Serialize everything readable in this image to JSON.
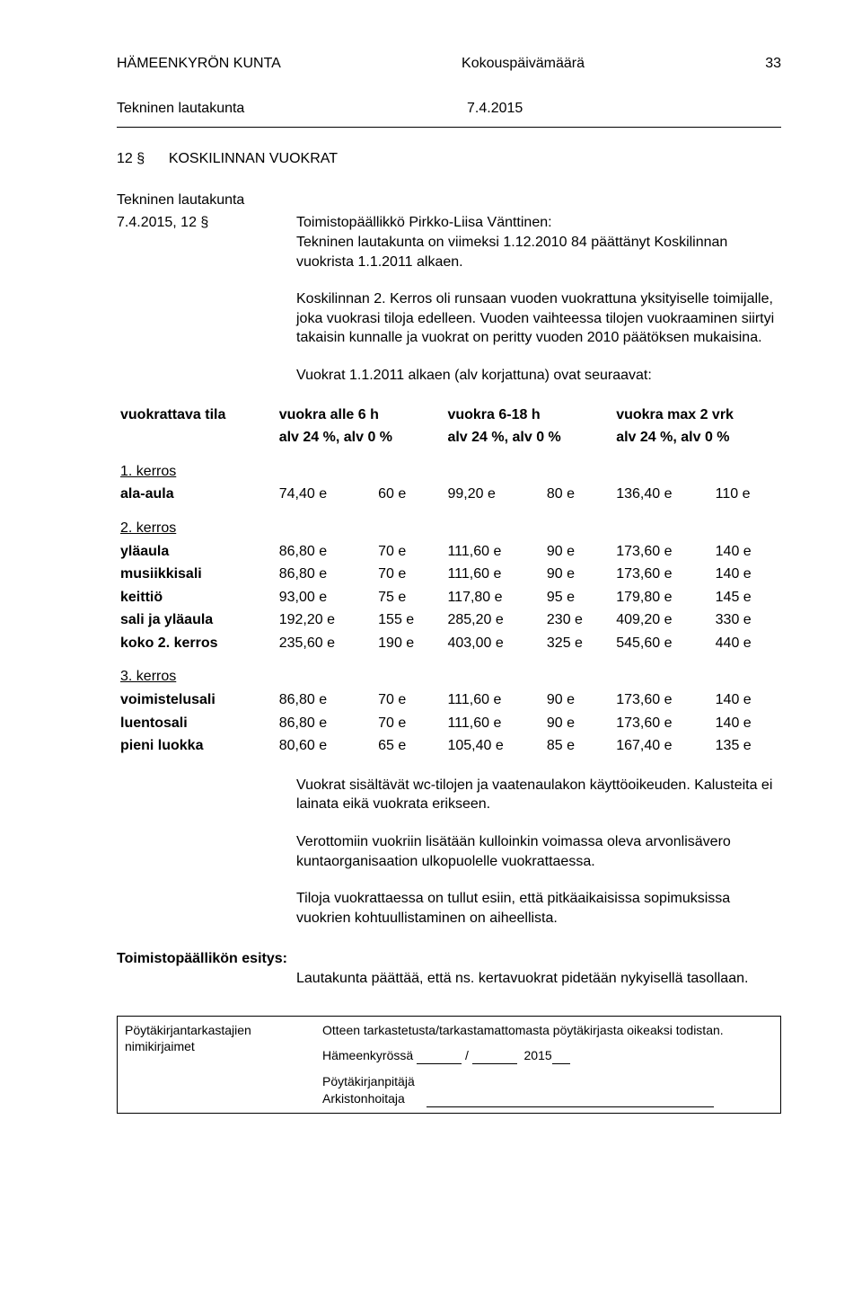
{
  "header": {
    "org": "HÄMEENKYRÖN KUNTA",
    "center": "Kokouspäivämäärä",
    "page_no": "33"
  },
  "committee": {
    "name": "Tekninen lautakunta",
    "date": "7.4.2015"
  },
  "section": {
    "num": "12 §",
    "title": "KOSKILINNAN VUOKRAT"
  },
  "agency_line": "Tekninen lautakunta",
  "meeting_ref": "7.4.2015, 12 §",
  "intro_1": "Toimistopäällikkö Pirkko-Liisa Vänttinen:",
  "intro_2": "Tekninen lautakunta on viimeksi 1.12.2010 84 päättänyt Koskilinnan vuokrista 1.1.2011 alkaen.",
  "para_1": "Koskilinnan 2. Kerros oli runsaan vuoden vuokrattuna yksityiselle toimijalle, joka vuokrasi tiloja edelleen. Vuoden vaihteessa tilojen vuokraaminen siirtyi takaisin kunnalle ja vuokrat on peritty vuoden 2010 päätöksen mukaisina.",
  "para_2": "Vuokrat 1.1.2011 alkaen (alv korjattuna) ovat seuraavat:",
  "table": {
    "headers": {
      "col_label": "vuokrattava tila",
      "col_a_1": "vuokra alle 6 h",
      "col_a_2": "alv 24 %, alv 0 %",
      "col_b_1": "vuokra 6-18 h",
      "col_b_2": "alv 24 %, alv 0 %",
      "col_c_1": "vuokra max 2 vrk",
      "col_c_2": "alv 24 %, alv 0 %"
    },
    "sections": [
      {
        "name": "1. kerros",
        "rows": [
          {
            "label": "ala-aula",
            "a1": "74,40 e",
            "a2": "60 e",
            "b1": "99,20 e",
            "b2": "80 e",
            "c1": "136,40 e",
            "c2": "110 e"
          }
        ]
      },
      {
        "name": "2. kerros",
        "rows": [
          {
            "label": "yläaula",
            "a1": "86,80 e",
            "a2": "70 e",
            "b1": "111,60 e",
            "b2": "90 e",
            "c1": "173,60 e",
            "c2": "140 e"
          },
          {
            "label": "musiikkisali",
            "a1": "86,80 e",
            "a2": "70 e",
            "b1": "111,60 e",
            "b2": "90 e",
            "c1": "173,60 e",
            "c2": "140 e"
          },
          {
            "label": "keittiö",
            "a1": "93,00 e",
            "a2": "75 e",
            "b1": "117,80 e",
            "b2": "95 e",
            "c1": "179,80 e",
            "c2": "145 e"
          },
          {
            "label": "sali ja yläaula",
            "a1": "192,20 e",
            "a2": "155 e",
            "b1": "285,20 e",
            "b2": "230 e",
            "c1": "409,20 e",
            "c2": "330 e"
          },
          {
            "label": "koko 2. kerros",
            "a1": "235,60 e",
            "a2": "190 e",
            "b1": "403,00 e",
            "b2": "325 e",
            "c1": "545,60 e",
            "c2": "440 e"
          }
        ]
      },
      {
        "name": "3. kerros",
        "rows": [
          {
            "label": "voimistelusali",
            "a1": "86,80 e",
            "a2": "70 e",
            "b1": "111,60 e",
            "b2": "90 e",
            "c1": "173,60 e",
            "c2": "140 e"
          },
          {
            "label": "luentosali",
            "a1": "86,80 e",
            "a2": "70 e",
            "b1": "111,60 e",
            "b2": "90 e",
            "c1": "173,60 e",
            "c2": "140 e"
          },
          {
            "label": "pieni luokka",
            "a1": "80,60 e",
            "a2": "65 e",
            "b1": "105,40 e",
            "b2": "85 e",
            "c1": "167,40 e",
            "c2": "135 e"
          }
        ]
      }
    ]
  },
  "post_1": "Vuokrat sisältävät wc-tilojen ja vaatenaulakon käyttöoikeuden. Kalusteita ei lainata eikä vuokrata erikseen.",
  "post_2": "Verottomiin vuokriin lisätään kulloinkin voimassa oleva arvonlisävero kuntaorganisaation ulkopuolelle vuokrattaessa.",
  "post_3": "Tiloja vuokrattaessa on tullut esiin, että pitkäaikaisissa sopimuksissa vuokrien kohtuullistaminen on aiheellista.",
  "proposal": {
    "title": "Toimistopäällikön esitys:",
    "text": "Lautakunta päättää, että ns. kertavuokrat pidetään nykyisellä tasollaan."
  },
  "footer": {
    "left_1": "Pöytäkirjantarkastajien",
    "left_2": "nimikirjaimet",
    "right_1": "Otteen tarkastetusta/tarkastamattomasta pöytäkirjasta oikeaksi todistan.",
    "place": "Hämeenkyrössä",
    "slash": "/",
    "year": "2015",
    "keeper": "Pöytäkirjanpitäjä",
    "archivist": "Arkistonhoitaja"
  }
}
